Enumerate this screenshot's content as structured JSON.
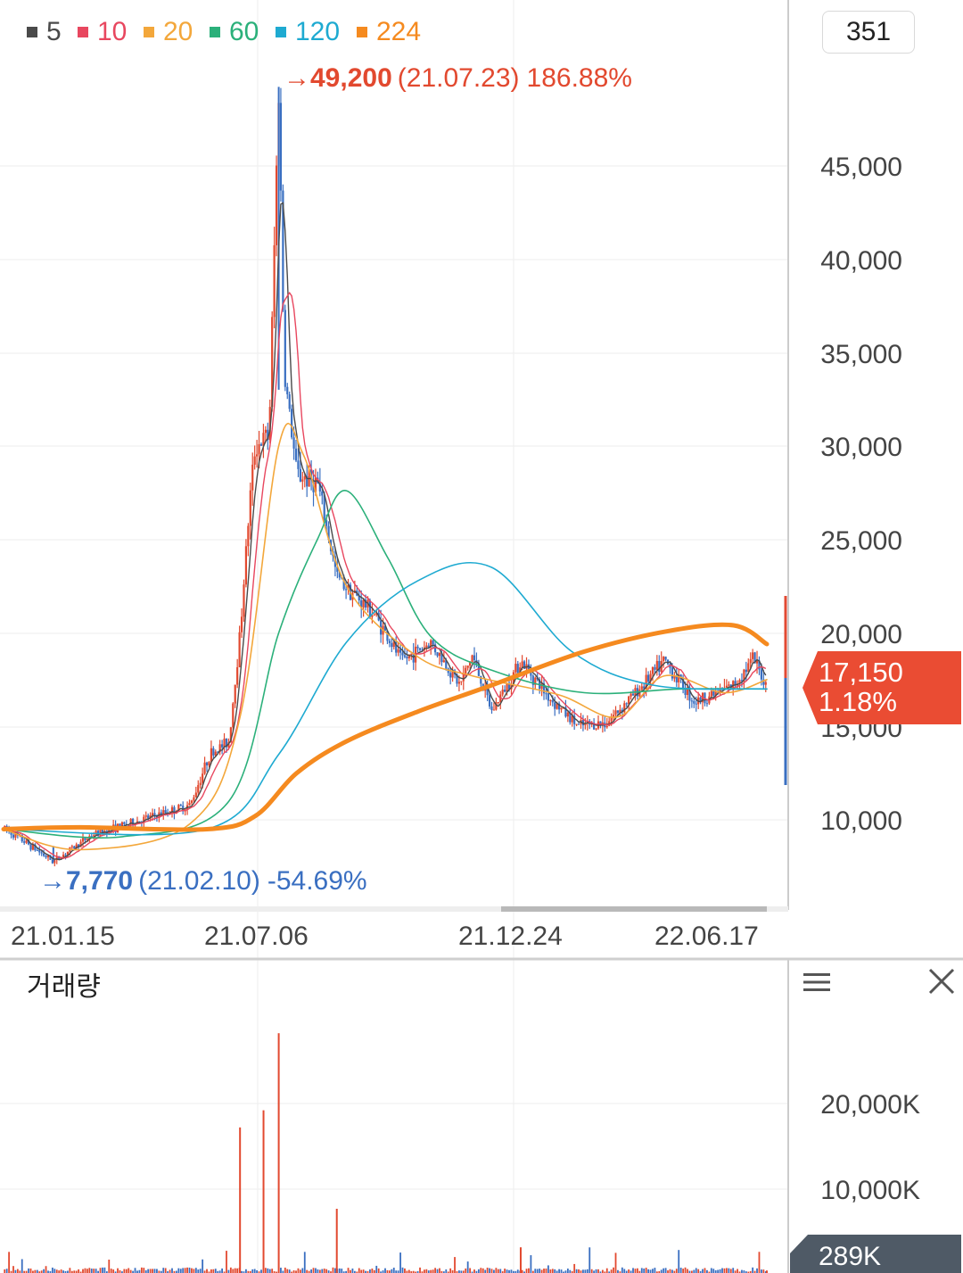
{
  "legend": [
    {
      "label": "5",
      "color": "#4a4a4a"
    },
    {
      "label": "10",
      "color": "#e8475f"
    },
    {
      "label": "20",
      "color": "#f3a73b"
    },
    {
      "label": "60",
      "color": "#2bb07a"
    },
    {
      "label": "120",
      "color": "#1eaad1"
    },
    {
      "label": "224",
      "color": "#f58a1f"
    }
  ],
  "candle_count": "351",
  "high_marker": {
    "arrow": "→",
    "price": "49,200",
    "date": "(21.07.23)",
    "pct": "186.88%",
    "color": "#e2492f"
  },
  "low_marker": {
    "arrow": "→",
    "price": "7,770",
    "date": "(21.02.10)",
    "pct": "-54.69%",
    "color": "#3a6fc1"
  },
  "price_axis_labels": [
    "45,000",
    "40,000",
    "35,000",
    "30,000",
    "25,000",
    "20,000",
    "15,000",
    "10,000"
  ],
  "current_price": {
    "value": "17,150",
    "change": "1.18%",
    "color": "#ea4c33"
  },
  "date_labels": [
    "21.01.15",
    "21.07.06",
    "21.12.24",
    "22.06.17"
  ],
  "volume_panel": {
    "title": "거래량",
    "axis_labels": [
      "20,000K",
      "10,000K"
    ],
    "current": "289K"
  },
  "chart_data": {
    "type": "line",
    "title": "",
    "candles": 351,
    "ylim": [
      5000,
      50000
    ],
    "price_points": [
      {
        "date": "21.01.05",
        "price": 9600
      },
      {
        "date": "21.02.10",
        "price": 7770
      },
      {
        "date": "21.03.10",
        "price": 9200
      },
      {
        "date": "21.04.15",
        "price": 10000
      },
      {
        "date": "21.05.20",
        "price": 10800
      },
      {
        "date": "21.06.03",
        "price": 13500
      },
      {
        "date": "21.06.17",
        "price": 14200
      },
      {
        "date": "21.06.25",
        "price": 20000
      },
      {
        "date": "21.07.02",
        "price": 27000
      },
      {
        "date": "21.07.06",
        "price": 30000
      },
      {
        "date": "21.07.16",
        "price": 30500
      },
      {
        "date": "21.07.23",
        "price": 49200
      },
      {
        "date": "21.07.27",
        "price": 34000
      },
      {
        "date": "21.08.05",
        "price": 28500
      },
      {
        "date": "21.08.20",
        "price": 28000
      },
      {
        "date": "21.09.03",
        "price": 23000
      },
      {
        "date": "21.09.30",
        "price": 21000
      },
      {
        "date": "21.10.20",
        "price": 18500
      },
      {
        "date": "21.11.10",
        "price": 19500
      },
      {
        "date": "21.12.01",
        "price": 17200
      },
      {
        "date": "21.12.10",
        "price": 18800
      },
      {
        "date": "21.12.24",
        "price": 15800
      },
      {
        "date": "22.01.14",
        "price": 18500
      },
      {
        "date": "22.02.04",
        "price": 16500
      },
      {
        "date": "22.02.25",
        "price": 15000
      },
      {
        "date": "22.03.17",
        "price": 15200
      },
      {
        "date": "22.04.07",
        "price": 16800
      },
      {
        "date": "22.04.28",
        "price": 18500
      },
      {
        "date": "22.05.20",
        "price": 16300
      },
      {
        "date": "22.06.17",
        "price": 17200
      },
      {
        "date": "22.07.01",
        "price": 18600
      },
      {
        "date": "22.07.11",
        "price": 17150
      }
    ],
    "moving_averages": [
      {
        "name": "20",
        "points": [
          {
            "date": "21.01.05",
            "price": 9500
          },
          {
            "date": "21.03.01",
            "price": 8400
          },
          {
            "date": "21.05.20",
            "price": 9800
          },
          {
            "date": "21.06.25",
            "price": 15500
          },
          {
            "date": "21.07.23",
            "price": 30000
          },
          {
            "date": "21.08.10",
            "price": 29500
          },
          {
            "date": "21.09.10",
            "price": 22500
          },
          {
            "date": "21.10.30",
            "price": 18800
          },
          {
            "date": "21.12.10",
            "price": 17700
          },
          {
            "date": "22.02.10",
            "price": 16700
          },
          {
            "date": "22.03.25",
            "price": 15500
          },
          {
            "date": "22.04.28",
            "price": 17700
          },
          {
            "date": "22.06.10",
            "price": 16800
          },
          {
            "date": "22.07.11",
            "price": 17500
          }
        ]
      },
      {
        "name": "60",
        "points": [
          {
            "date": "21.01.05",
            "price": 9500
          },
          {
            "date": "21.04.01",
            "price": 9100
          },
          {
            "date": "21.06.17",
            "price": 11000
          },
          {
            "date": "21.07.23",
            "price": 20000
          },
          {
            "date": "21.08.20",
            "price": 25000
          },
          {
            "date": "21.09.10",
            "price": 27600
          },
          {
            "date": "21.10.10",
            "price": 24000
          },
          {
            "date": "21.11.10",
            "price": 19800
          },
          {
            "date": "21.12.24",
            "price": 18000
          },
          {
            "date": "22.03.01",
            "price": 16800
          },
          {
            "date": "22.05.10",
            "price": 17000
          },
          {
            "date": "22.07.11",
            "price": 17000
          }
        ]
      },
      {
        "name": "120",
        "points": [
          {
            "date": "21.01.05",
            "price": 9500
          },
          {
            "date": "21.06.01",
            "price": 9500
          },
          {
            "date": "21.07.23",
            "price": 13500
          },
          {
            "date": "21.09.10",
            "price": 19500
          },
          {
            "date": "21.11.01",
            "price": 22800
          },
          {
            "date": "21.12.24",
            "price": 23500
          },
          {
            "date": "22.02.20",
            "price": 19000
          },
          {
            "date": "22.04.20",
            "price": 17200
          },
          {
            "date": "22.07.11",
            "price": 17000
          }
        ]
      },
      {
        "name": "224",
        "points": [
          {
            "date": "21.01.05",
            "price": 9500
          },
          {
            "date": "21.03.01",
            "price": 9600
          },
          {
            "date": "21.06.01",
            "price": 9500
          },
          {
            "date": "21.07.06",
            "price": 10200
          },
          {
            "date": "21.08.05",
            "price": 12500
          },
          {
            "date": "21.09.10",
            "price": 14200
          },
          {
            "date": "21.11.01",
            "price": 15800
          },
          {
            "date": "21.12.24",
            "price": 17200
          },
          {
            "date": "22.03.01",
            "price": 19000
          },
          {
            "date": "22.05.01",
            "price": 20100
          },
          {
            "date": "22.06.17",
            "price": 20400
          },
          {
            "date": "22.07.11",
            "price": 19400
          }
        ]
      }
    ],
    "volume_peaks": [
      {
        "date": "21.06.25",
        "volume": 17000000
      },
      {
        "date": "21.07.12",
        "volume": 19000000
      },
      {
        "date": "21.07.23",
        "volume": 28000000
      },
      {
        "date": "21.09.03",
        "volume": 7500000
      },
      {
        "date": "22.01.14",
        "volume": 3000000
      },
      {
        "date": "22.07.11",
        "volume": 289000
      }
    ]
  }
}
